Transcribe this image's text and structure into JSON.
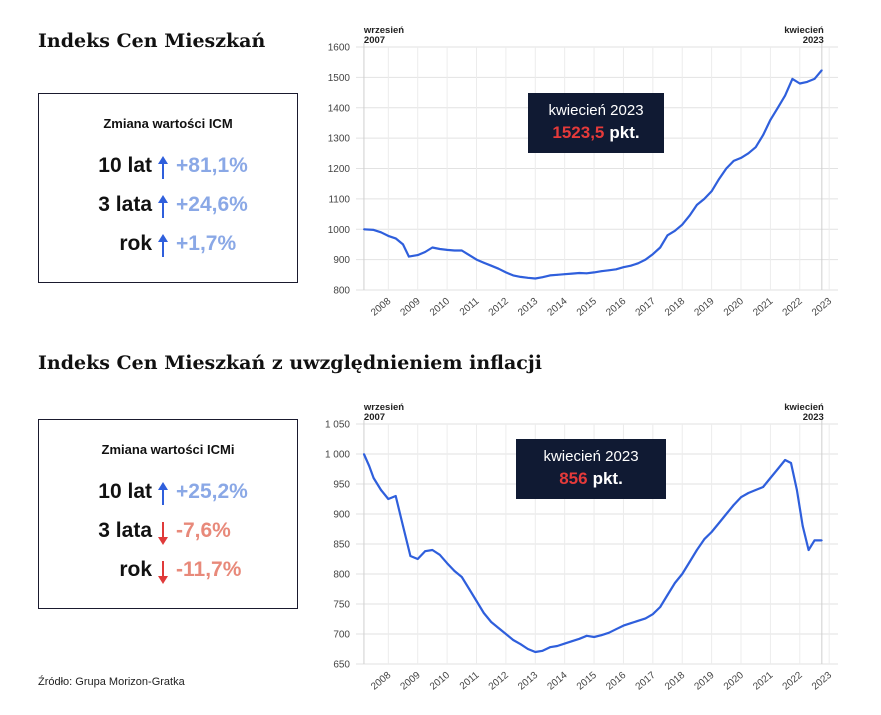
{
  "sections": [
    {
      "title": "Indeks Cen Mieszkań",
      "box": {
        "title": "Zmiana wartości ICM",
        "rows": [
          {
            "label": "10 lat",
            "direction": "up",
            "value": "+81,1%"
          },
          {
            "label": "3 lata",
            "direction": "up",
            "value": "+24,6%"
          },
          {
            "label": "rok",
            "direction": "up",
            "value": "+1,7%"
          }
        ]
      }
    },
    {
      "title": "Indeks Cen Mieszkań z uwzględnieniem inflacji",
      "box": {
        "title": "Zmiana wartości ICMi",
        "rows": [
          {
            "label": "10 lat",
            "direction": "up",
            "value": "+25,2%"
          },
          {
            "label": "3 lata",
            "direction": "down",
            "value": "-7,6%"
          },
          {
            "label": "rok",
            "direction": "down",
            "value": "-11,7%"
          }
        ]
      }
    }
  ],
  "colors": {
    "line": "#2f5fdc",
    "up": "#8aa8e6",
    "down": "#e8897a",
    "arrow_up": "#2f5fdc",
    "arrow_down": "#e03a3a",
    "callout_bg": "#101a33",
    "callout_value": "#e53a3a"
  },
  "source": "Źródło: Grupa Morizon-Gratka",
  "chart_data": [
    {
      "type": "line",
      "x": [
        2007.67,
        2008.0,
        2008.25,
        2008.5,
        2008.75,
        2009.0,
        2009.2,
        2009.5,
        2009.75,
        2010.0,
        2010.25,
        2010.5,
        2010.75,
        2011.0,
        2011.25,
        2011.5,
        2011.75,
        2012.0,
        2012.25,
        2012.5,
        2012.75,
        2013.0,
        2013.25,
        2013.5,
        2013.75,
        2014.0,
        2014.25,
        2014.5,
        2014.75,
        2015.0,
        2015.25,
        2015.5,
        2015.75,
        2016.0,
        2016.25,
        2016.5,
        2016.75,
        2017.0,
        2017.25,
        2017.5,
        2017.75,
        2018.0,
        2018.25,
        2018.5,
        2018.75,
        2019.0,
        2019.25,
        2019.5,
        2019.75,
        2020.0,
        2020.25,
        2020.5,
        2020.75,
        2021.0,
        2021.25,
        2021.5,
        2021.75,
        2022.0,
        2022.25,
        2022.5,
        2022.75,
        2023.0,
        2023.25
      ],
      "values": [
        1000,
        998,
        990,
        978,
        970,
        950,
        910,
        915,
        925,
        940,
        935,
        932,
        930,
        930,
        915,
        900,
        890,
        880,
        870,
        858,
        848,
        843,
        840,
        838,
        842,
        848,
        850,
        852,
        854,
        856,
        855,
        858,
        862,
        865,
        868,
        875,
        880,
        888,
        900,
        918,
        940,
        980,
        995,
        1015,
        1045,
        1080,
        1100,
        1125,
        1165,
        1200,
        1225,
        1235,
        1250,
        1270,
        1310,
        1360,
        1400,
        1440,
        1495,
        1480,
        1485,
        1495,
        1523.5
      ],
      "x_ticks": [
        "2008",
        "2009",
        "2010",
        "2011",
        "2012",
        "2013",
        "2014",
        "2015",
        "2016",
        "2017",
        "2018",
        "2019",
        "2020",
        "2021",
        "2022",
        "2023"
      ],
      "y_ticks": [
        "800",
        "900",
        "1000",
        "1100",
        "1200",
        "1300",
        "1400",
        "1500",
        "1600"
      ],
      "ylim": [
        800,
        1600
      ],
      "xlim": [
        2007.4,
        2023.8
      ],
      "start_label": [
        "wrzesień",
        "2007"
      ],
      "end_label": [
        "kwiecień",
        "2023"
      ],
      "callout": {
        "line1": "kwiecień 2023",
        "value": "1523,5",
        "unit": "pkt."
      },
      "grid": true
    },
    {
      "type": "line",
      "x": [
        2007.67,
        2007.85,
        2008.0,
        2008.25,
        2008.5,
        2008.75,
        2009.0,
        2009.25,
        2009.5,
        2009.75,
        2010.0,
        2010.25,
        2010.5,
        2010.75,
        2011.0,
        2011.25,
        2011.5,
        2011.75,
        2012.0,
        2012.25,
        2012.5,
        2012.75,
        2013.0,
        2013.25,
        2013.5,
        2013.75,
        2014.0,
        2014.25,
        2014.5,
        2014.75,
        2015.0,
        2015.25,
        2015.5,
        2015.75,
        2016.0,
        2016.25,
        2016.5,
        2016.75,
        2017.0,
        2017.25,
        2017.5,
        2017.75,
        2018.0,
        2018.25,
        2018.5,
        2018.75,
        2019.0,
        2019.25,
        2019.5,
        2019.75,
        2020.0,
        2020.25,
        2020.5,
        2020.75,
        2021.0,
        2021.25,
        2021.5,
        2021.75,
        2022.0,
        2022.2,
        2022.4,
        2022.6,
        2022.8,
        2023.0,
        2023.25
      ],
      "values": [
        1000,
        980,
        960,
        940,
        925,
        930,
        880,
        830,
        825,
        838,
        840,
        832,
        818,
        805,
        795,
        775,
        755,
        735,
        720,
        710,
        700,
        690,
        683,
        675,
        670,
        672,
        678,
        680,
        684,
        688,
        692,
        697,
        695,
        698,
        702,
        708,
        714,
        718,
        722,
        726,
        733,
        745,
        765,
        785,
        800,
        820,
        840,
        858,
        870,
        885,
        900,
        915,
        928,
        935,
        940,
        945,
        960,
        975,
        990,
        985,
        940,
        880,
        840,
        856,
        856
      ],
      "x_ticks": [
        "2008",
        "2009",
        "2010",
        "2011",
        "2012",
        "2013",
        "2014",
        "2015",
        "2016",
        "2017",
        "2018",
        "2019",
        "2020",
        "2021",
        "2022",
        "2023"
      ],
      "y_ticks": [
        "650",
        "700",
        "750",
        "800",
        "850",
        "900",
        "950",
        "1 000",
        "1 050"
      ],
      "ylim": [
        650,
        1050
      ],
      "xlim": [
        2007.4,
        2023.8
      ],
      "start_label": [
        "wrzesień",
        "2007"
      ],
      "end_label": [
        "kwiecień",
        "2023"
      ],
      "callout": {
        "line1": "kwiecień 2023",
        "value": "856",
        "unit": "pkt."
      },
      "grid": true
    }
  ]
}
